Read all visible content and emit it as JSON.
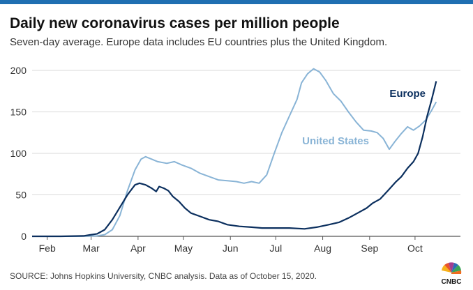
{
  "title": "Daily new coronavirus cases per million people",
  "subtitle": "Seven-day average. Europe data includes EU countries plus the United Kingdom.",
  "source": "SOURCE: Johns Hopkins University, CNBC analysis. Data as of October 15, 2020.",
  "logo_text": "CNBC",
  "colors": {
    "accent": "#0b3b6f",
    "europe": "#0b2f5e",
    "us": "#89b4d6",
    "grid": "#d9d9d9",
    "topbar": "#1f6fb2"
  },
  "chart_data": {
    "type": "line",
    "title": "Daily new coronavirus cases per million people",
    "xlabel": "",
    "ylabel": "",
    "ylim": [
      0,
      200
    ],
    "yticks": [
      0,
      50,
      100,
      150,
      200
    ],
    "x_tick_labels": [
      {
        "label": "Feb",
        "x": "2020-02-01"
      },
      {
        "label": "Mar",
        "x": "2020-03-01"
      },
      {
        "label": "Apr",
        "x": "2020-04-01"
      },
      {
        "label": "May",
        "x": "2020-05-01"
      },
      {
        "label": "Jun",
        "x": "2020-06-01"
      },
      {
        "label": "Jul",
        "x": "2020-07-01"
      },
      {
        "label": "Aug",
        "x": "2020-08-01"
      },
      {
        "label": "Sep",
        "x": "2020-09-01"
      },
      {
        "label": "Oct",
        "x": "2020-10-01"
      }
    ],
    "xlim": [
      "2020-01-22",
      "2020-10-31"
    ],
    "grid": true,
    "series": [
      {
        "name": "Europe",
        "color": "#0b2f5e",
        "points": [
          [
            "2020-01-22",
            0
          ],
          [
            "2020-02-10",
            0
          ],
          [
            "2020-02-25",
            0.5
          ],
          [
            "2020-03-05",
            3
          ],
          [
            "2020-03-10",
            8
          ],
          [
            "2020-03-15",
            20
          ],
          [
            "2020-03-20",
            35
          ],
          [
            "2020-03-25",
            50
          ],
          [
            "2020-03-30",
            62
          ],
          [
            "2020-04-02",
            64
          ],
          [
            "2020-04-06",
            62
          ],
          [
            "2020-04-10",
            58
          ],
          [
            "2020-04-13",
            54
          ],
          [
            "2020-04-15",
            60
          ],
          [
            "2020-04-18",
            58
          ],
          [
            "2020-04-21",
            55
          ],
          [
            "2020-04-24",
            48
          ],
          [
            "2020-04-28",
            42
          ],
          [
            "2020-05-02",
            34
          ],
          [
            "2020-05-06",
            28
          ],
          [
            "2020-05-12",
            24
          ],
          [
            "2020-05-18",
            20
          ],
          [
            "2020-05-24",
            18
          ],
          [
            "2020-05-30",
            14
          ],
          [
            "2020-06-07",
            12
          ],
          [
            "2020-06-15",
            11
          ],
          [
            "2020-06-22",
            10
          ],
          [
            "2020-07-01",
            10
          ],
          [
            "2020-07-10",
            10
          ],
          [
            "2020-07-20",
            9
          ],
          [
            "2020-07-28",
            11
          ],
          [
            "2020-08-05",
            14
          ],
          [
            "2020-08-12",
            17
          ],
          [
            "2020-08-18",
            22
          ],
          [
            "2020-08-24",
            28
          ],
          [
            "2020-08-30",
            34
          ],
          [
            "2020-09-03",
            40
          ],
          [
            "2020-09-08",
            45
          ],
          [
            "2020-09-13",
            55
          ],
          [
            "2020-09-18",
            65
          ],
          [
            "2020-09-22",
            72
          ],
          [
            "2020-09-26",
            82
          ],
          [
            "2020-09-30",
            90
          ],
          [
            "2020-10-03",
            100
          ],
          [
            "2020-10-06",
            120
          ],
          [
            "2020-10-09",
            145
          ],
          [
            "2020-10-12",
            165
          ],
          [
            "2020-10-15",
            187
          ]
        ]
      },
      {
        "name": "United States",
        "color": "#89b4d6",
        "points": [
          [
            "2020-01-22",
            0
          ],
          [
            "2020-02-20",
            0
          ],
          [
            "2020-03-05",
            0.5
          ],
          [
            "2020-03-10",
            2
          ],
          [
            "2020-03-15",
            8
          ],
          [
            "2020-03-20",
            25
          ],
          [
            "2020-03-25",
            55
          ],
          [
            "2020-03-30",
            80
          ],
          [
            "2020-04-03",
            93
          ],
          [
            "2020-04-06",
            96
          ],
          [
            "2020-04-10",
            93
          ],
          [
            "2020-04-14",
            90
          ],
          [
            "2020-04-20",
            88
          ],
          [
            "2020-04-25",
            90
          ],
          [
            "2020-04-30",
            86
          ],
          [
            "2020-05-06",
            82
          ],
          [
            "2020-05-12",
            76
          ],
          [
            "2020-05-18",
            72
          ],
          [
            "2020-05-24",
            68
          ],
          [
            "2020-05-30",
            67
          ],
          [
            "2020-06-05",
            66
          ],
          [
            "2020-06-10",
            64
          ],
          [
            "2020-06-15",
            66
          ],
          [
            "2020-06-20",
            64
          ],
          [
            "2020-06-25",
            74
          ],
          [
            "2020-06-30",
            100
          ],
          [
            "2020-07-05",
            125
          ],
          [
            "2020-07-10",
            145
          ],
          [
            "2020-07-15",
            165
          ],
          [
            "2020-07-18",
            185
          ],
          [
            "2020-07-22",
            196
          ],
          [
            "2020-07-26",
            202
          ],
          [
            "2020-07-30",
            198
          ],
          [
            "2020-08-03",
            188
          ],
          [
            "2020-08-08",
            172
          ],
          [
            "2020-08-13",
            163
          ],
          [
            "2020-08-18",
            150
          ],
          [
            "2020-08-23",
            138
          ],
          [
            "2020-08-28",
            128
          ],
          [
            "2020-09-02",
            127
          ],
          [
            "2020-09-06",
            125
          ],
          [
            "2020-09-10",
            118
          ],
          [
            "2020-09-14",
            105
          ],
          [
            "2020-09-18",
            115
          ],
          [
            "2020-09-22",
            124
          ],
          [
            "2020-09-26",
            132
          ],
          [
            "2020-09-30",
            128
          ],
          [
            "2020-10-04",
            133
          ],
          [
            "2020-10-08",
            140
          ],
          [
            "2020-10-12",
            152
          ],
          [
            "2020-10-15",
            162
          ]
        ]
      }
    ],
    "annotations": [
      {
        "text": "Europe",
        "series": "Europe"
      },
      {
        "text": "United States",
        "series": "United States"
      }
    ]
  }
}
